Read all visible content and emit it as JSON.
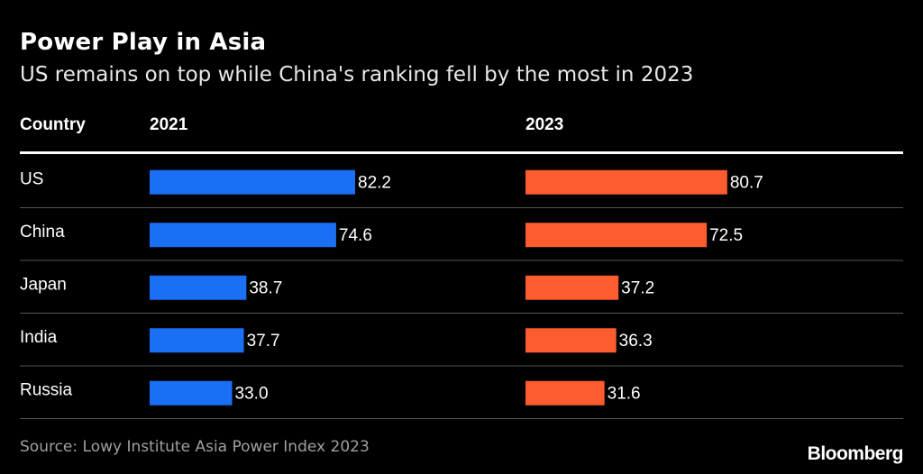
{
  "title": "Power Play in Asia",
  "subtitle": "US remains on top while China's ranking fell by the most in 2023",
  "source": "Source: Lowy Institute Asia Power Index 2023",
  "logo": "Bloomberg",
  "chart_data": {
    "type": "bar",
    "orientation": "horizontal",
    "column_header": "Country",
    "categories": [
      "US",
      "China",
      "Japan",
      "India",
      "Russia"
    ],
    "series": [
      {
        "name": "2021",
        "values": [
          82.2,
          74.6,
          38.7,
          37.7,
          33.0
        ],
        "color": "#1a6ff5"
      },
      {
        "name": "2023",
        "values": [
          80.7,
          72.5,
          37.2,
          36.3,
          31.6
        ],
        "color": "#fd5c2e"
      }
    ],
    "value_labels": [
      [
        "82.2",
        "74.6",
        "38.7",
        "37.7",
        "33.0"
      ],
      [
        "80.7",
        "72.5",
        "37.2",
        "36.3",
        "31.6"
      ]
    ],
    "xlim": [
      0,
      82.2
    ],
    "grid": false
  }
}
